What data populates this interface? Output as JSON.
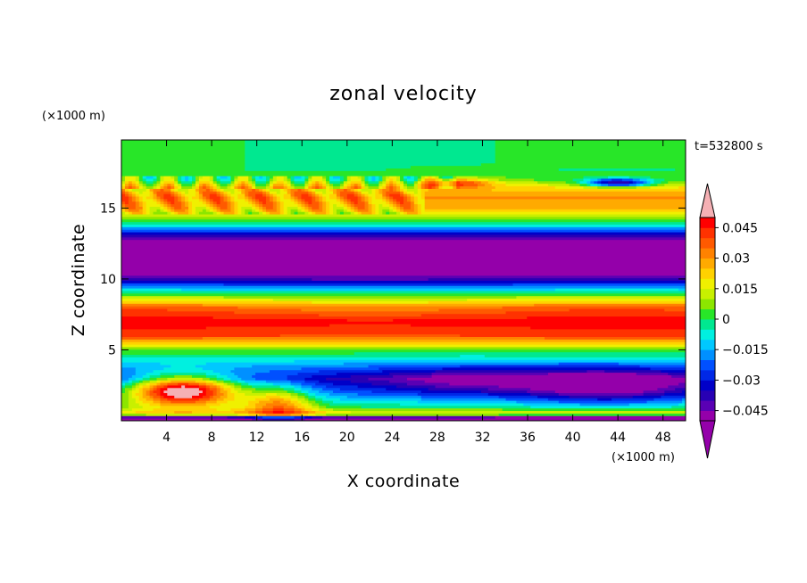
{
  "chart_data": {
    "type": "heatmap",
    "title": "zonal velocity",
    "xlabel": "X coordinate",
    "ylabel": "Z coordinate",
    "x_unit": "(×1000 m)",
    "y_unit": "(×1000 m)",
    "time_label": "t=532800 s",
    "xlim": [
      0,
      50
    ],
    "ylim": [
      0,
      19.8
    ],
    "x_ticks": [
      4,
      8,
      12,
      16,
      20,
      24,
      28,
      32,
      36,
      40,
      44,
      48
    ],
    "y_ticks": [
      5,
      10,
      15
    ],
    "colorbar": {
      "tick_values": [
        0.045,
        0.03,
        0.015,
        0,
        -0.015,
        -0.03,
        -0.045
      ],
      "tick_labels": [
        "0.045",
        "0.03",
        "0.015",
        "0",
        "−0.015",
        "−0.03",
        "−0.045"
      ],
      "levels": [
        -0.05,
        -0.045,
        -0.04,
        -0.035,
        -0.03,
        -0.025,
        -0.02,
        -0.015,
        -0.01,
        -0.005,
        0,
        0.005,
        0.01,
        0.015,
        0.02,
        0.025,
        0.03,
        0.035,
        0.04,
        0.045,
        0.05
      ],
      "colors": [
        "#9400aa",
        "#5a00b4",
        "#2800b4",
        "#0000c8",
        "#0028e6",
        "#0050ff",
        "#0090ff",
        "#00c8ff",
        "#00f0e0",
        "#00e890",
        "#28e628",
        "#8ce600",
        "#c8f000",
        "#f0f000",
        "#ffd200",
        "#ffaa00",
        "#ff8200",
        "#ff5a00",
        "#ff3200",
        "#ff0000"
      ],
      "over_color": "#f5b0b4",
      "under_color": "#9400aa"
    },
    "z_profile": [
      {
        "z": 0.0,
        "u": -0.06
      },
      {
        "z": 0.25,
        "u": -0.05
      },
      {
        "z": 0.5,
        "u": 0.02
      },
      {
        "z": 1.0,
        "u": 0.0
      },
      {
        "z": 2.0,
        "u": -0.02
      },
      {
        "z": 3.0,
        "u": -0.035
      },
      {
        "z": 4.0,
        "u": -0.015
      },
      {
        "z": 5.0,
        "u": 0.005
      },
      {
        "z": 6.0,
        "u": 0.04
      },
      {
        "z": 7.0,
        "u": 0.048
      },
      {
        "z": 8.0,
        "u": 0.035
      },
      {
        "z": 9.0,
        "u": 0.0
      },
      {
        "z": 10.0,
        "u": -0.04
      },
      {
        "z": 11.0,
        "u": -0.06
      },
      {
        "z": 12.0,
        "u": -0.06
      },
      {
        "z": 13.0,
        "u": -0.04
      },
      {
        "z": 14.0,
        "u": 0.0
      },
      {
        "z": 15.0,
        "u": 0.025
      },
      {
        "z": 15.8,
        "u": 0.032
      },
      {
        "z": 16.5,
        "u": 0.02
      },
      {
        "z": 17.0,
        "u": 0.005
      },
      {
        "z": 17.6,
        "u": 0.0
      },
      {
        "z": 19.8,
        "u": 0.0
      }
    ],
    "features": [
      {
        "x": 5.5,
        "z": 2.2,
        "u": 0.055
      },
      {
        "x": 43,
        "z": 2.4,
        "u": -0.06
      },
      {
        "x": 34,
        "z": 3.1,
        "u": -0.045
      },
      {
        "x": 30,
        "z": 16.8,
        "u": 0.055
      },
      {
        "x": 44,
        "z": 16.8,
        "u": -0.06
      },
      {
        "x": 25.5,
        "z": 15.6,
        "u": 0.045
      }
    ]
  }
}
